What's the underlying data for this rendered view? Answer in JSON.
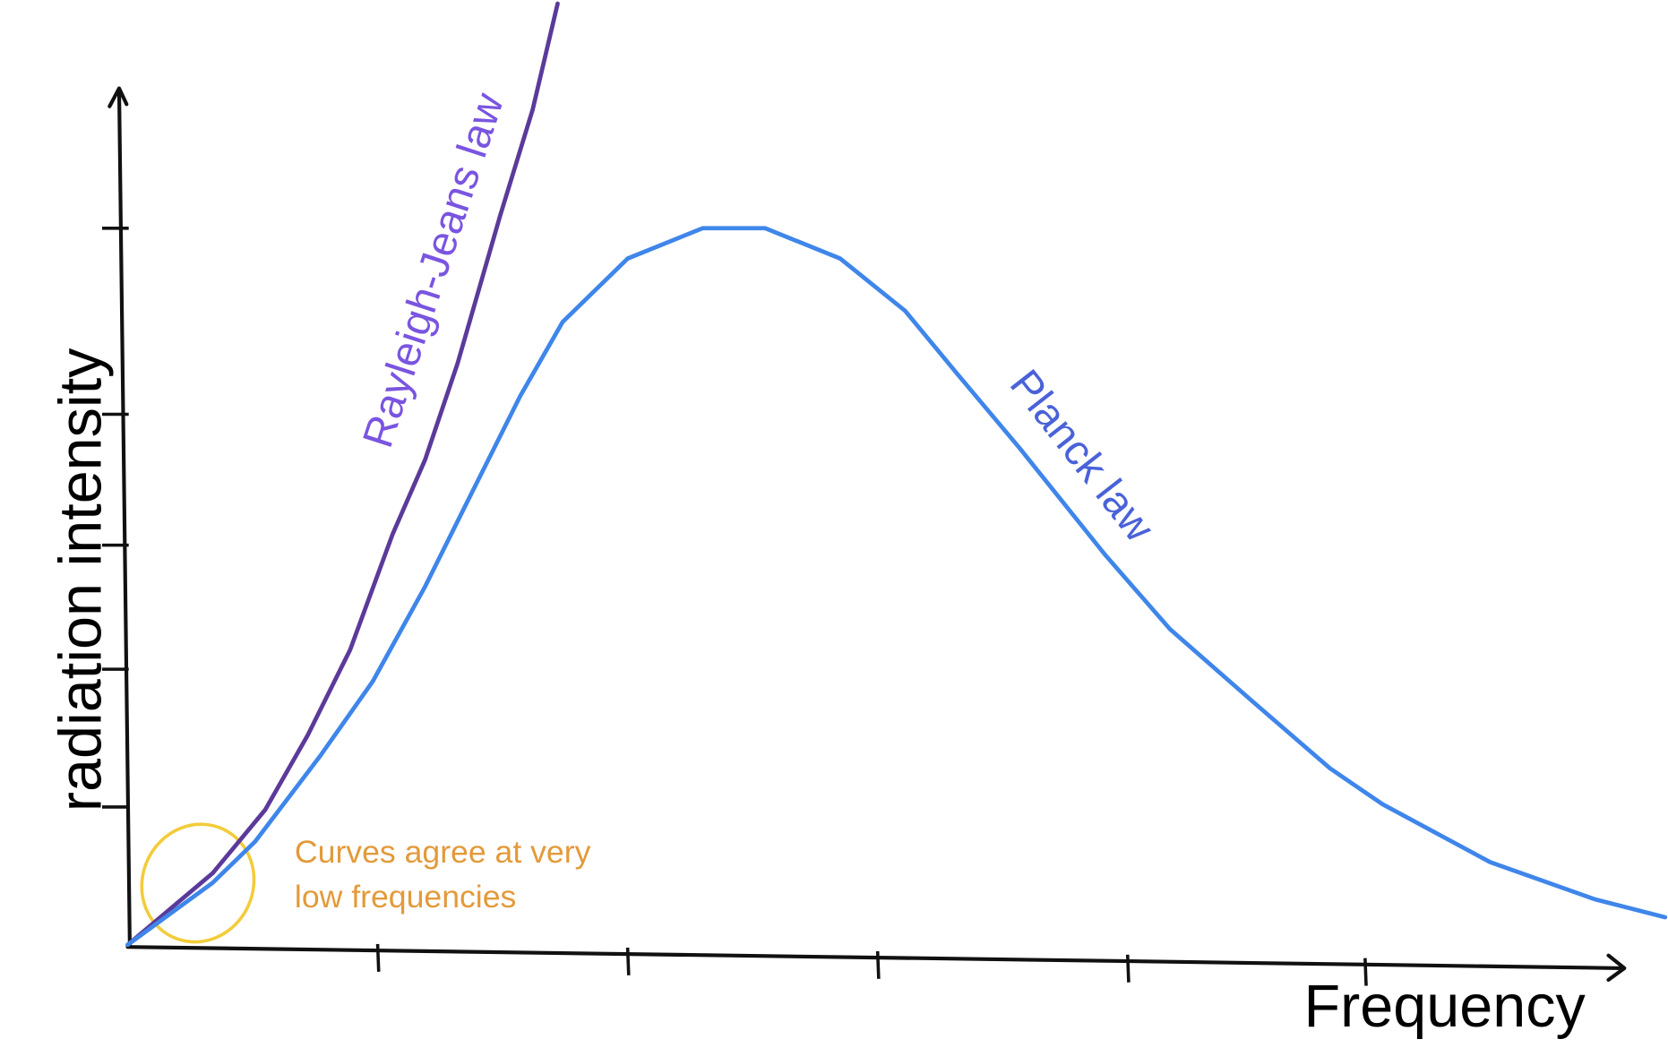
{
  "chart_data": {
    "type": "line",
    "x_label": "Frequency",
    "y_label": "radiation intensity",
    "xlim": [
      0,
      6
    ],
    "ylim": [
      0,
      6.2
    ],
    "xticks": [
      1,
      2,
      3,
      4,
      4.95
    ],
    "yticks": [
      1,
      2,
      2.9,
      3.85,
      5.2
    ],
    "series": [
      {
        "name": "Rayleigh-Jeans law",
        "color": "#5b3a9a",
        "x": [
          0,
          0.34,
          0.55,
          0.72,
          0.89,
          1.06,
          1.19,
          1.32,
          1.49,
          1.62,
          1.72
        ],
        "values": [
          0,
          0.52,
          0.98,
          1.52,
          2.14,
          2.98,
          3.52,
          4.22,
          5.29,
          6.06,
          6.83
        ]
      },
      {
        "name": "Planck law",
        "color": "#3f86ea",
        "x": [
          0,
          0.34,
          0.51,
          0.77,
          0.98,
          1.19,
          1.36,
          1.57,
          1.74,
          2,
          2.3,
          2.55,
          2.85,
          3.11,
          3.32,
          3.57,
          3.91,
          4.17,
          4.51,
          4.81,
          5.02,
          5.45,
          5.87,
          6.15
        ],
        "values": [
          0,
          0.45,
          0.75,
          1.37,
          1.91,
          2.6,
          3.22,
          3.98,
          4.52,
          4.98,
          5.2,
          5.2,
          4.98,
          4.6,
          4.14,
          3.6,
          2.83,
          2.29,
          1.75,
          1.28,
          1.02,
          0.6,
          0.33,
          0.2
        ]
      }
    ],
    "annotation": [
      "Curves agree at very",
      "low frequencies"
    ]
  }
}
